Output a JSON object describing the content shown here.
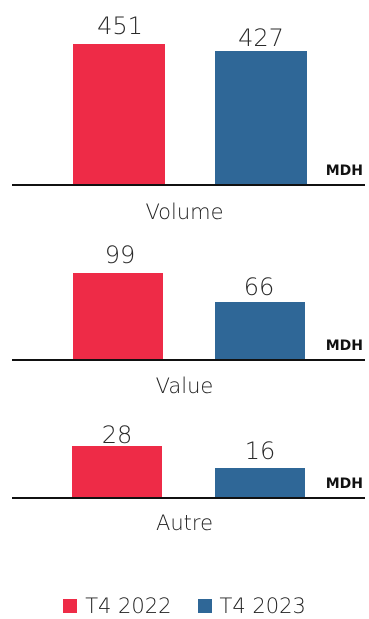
{
  "chart_data": [
    {
      "type": "bar",
      "categories": [
        "Volume"
      ],
      "unit": "MDH",
      "series": [
        {
          "name": "T4 2022",
          "values": [
            451
          ]
        },
        {
          "name": "T4 2023",
          "values": [
            427
          ]
        }
      ]
    },
    {
      "type": "bar",
      "categories": [
        "Value"
      ],
      "unit": "MDH",
      "series": [
        {
          "name": "T4 2022",
          "values": [
            99
          ]
        },
        {
          "name": "T4 2023",
          "values": [
            66
          ]
        }
      ]
    },
    {
      "type": "bar",
      "categories": [
        "Autre"
      ],
      "unit": "MDH",
      "series": [
        {
          "name": "T4 2022",
          "values": [
            28
          ]
        },
        {
          "name": "T4 2023",
          "values": [
            16
          ]
        }
      ]
    }
  ],
  "panels": [
    {
      "category": "Volume",
      "unit": "MDH",
      "v2022": "451",
      "v2023": "427"
    },
    {
      "category": "Value",
      "unit": "MDH",
      "v2022": "99",
      "v2023": "66"
    },
    {
      "category": "Autre",
      "unit": "MDH",
      "v2022": "28",
      "v2023": "16"
    }
  ],
  "legend": {
    "label_2022": "T4 2022",
    "label_2023": "T4 2023"
  },
  "colors": {
    "t4_2022": "#ee2b47",
    "t4_2023": "#2f6797"
  }
}
